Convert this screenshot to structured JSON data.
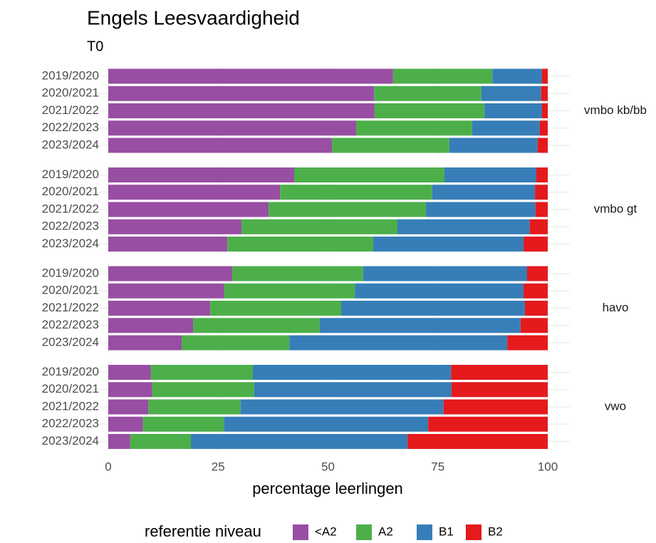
{
  "chart_data": {
    "type": "bar",
    "title": "Engels Leesvaardigheid",
    "subtitle": "T0",
    "xlabel": "percentage leerlingen",
    "legend_title": "referentie niveau",
    "facets": [
      "vmbo kb/bb",
      "vmbo gt",
      "havo",
      "vwo"
    ],
    "categories": [
      "2019/2020",
      "2020/2021",
      "2021/2022",
      "2022/2023",
      "2023/2024"
    ],
    "xlim": [
      0,
      100
    ],
    "xticks": [
      0,
      25,
      50,
      75,
      100
    ],
    "grid": true,
    "stacked": true,
    "orientation": "horizontal",
    "series": [
      {
        "name": "<A2",
        "color": "#984EA3",
        "values": [
          [
            64.8,
            60.5,
            60.6,
            56.4,
            50.9
          ],
          [
            42.3,
            39.1,
            36.5,
            30.3,
            27.1
          ],
          [
            28.2,
            26.4,
            23.2,
            19.3,
            16.7
          ],
          [
            9.7,
            10.0,
            9.1,
            7.9,
            5.0
          ]
        ]
      },
      {
        "name": "A2",
        "color": "#4DAF4A",
        "values": [
          [
            22.6,
            24.4,
            25.0,
            26.4,
            26.7
          ],
          [
            34.2,
            34.6,
            35.8,
            35.5,
            33.2
          ],
          [
            29.8,
            29.7,
            29.8,
            28.8,
            24.5
          ],
          [
            23.2,
            23.2,
            21.0,
            18.4,
            13.8
          ]
        ]
      },
      {
        "name": "B1",
        "color": "#377EB8",
        "values": [
          [
            11.3,
            13.6,
            13.1,
            15.4,
            20.1
          ],
          [
            20.9,
            23.4,
            24.9,
            30.1,
            34.2
          ],
          [
            37.3,
            38.4,
            41.8,
            45.7,
            49.6
          ],
          [
            45.1,
            44.9,
            46.2,
            46.5,
            49.3
          ]
        ]
      },
      {
        "name": "B2",
        "color": "#E41A1C",
        "values": [
          [
            1.3,
            1.5,
            1.3,
            1.8,
            2.3
          ],
          [
            2.6,
            2.9,
            2.8,
            4.1,
            5.5
          ],
          [
            4.7,
            5.5,
            5.2,
            6.2,
            9.2
          ],
          [
            22.0,
            21.9,
            23.7,
            27.2,
            31.9
          ]
        ]
      }
    ]
  }
}
